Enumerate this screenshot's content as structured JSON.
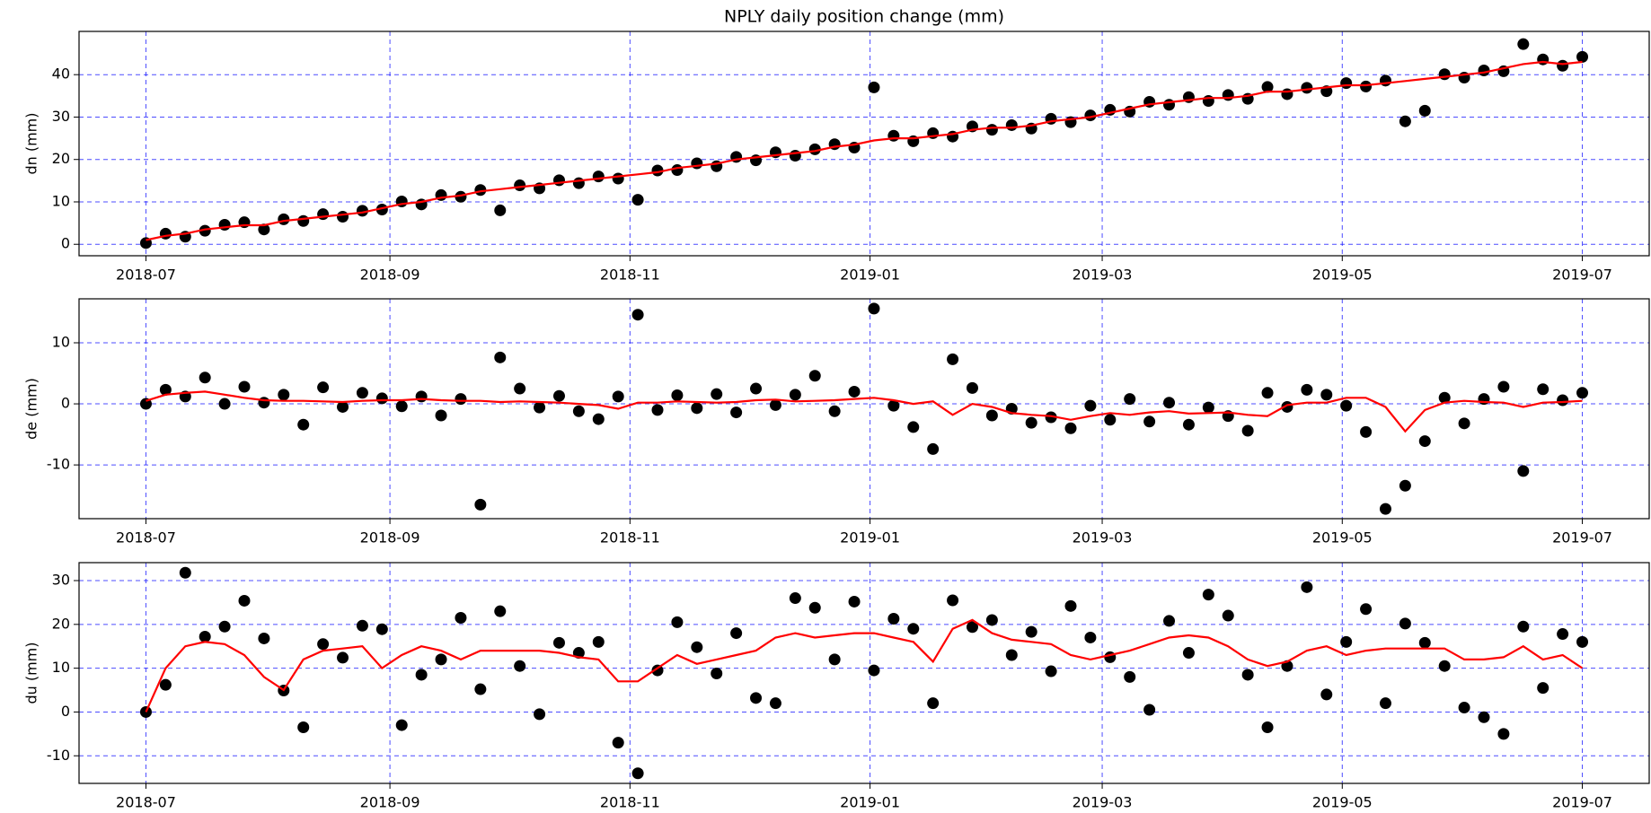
{
  "chart_data": [
    {
      "type": "scatter",
      "title": "NPLY daily position change (mm)",
      "y_label": "dn (mm)",
      "x": [
        0,
        5,
        10,
        15,
        20,
        25,
        30,
        35,
        40,
        45,
        50,
        55,
        60,
        65,
        70,
        75,
        80,
        85,
        90,
        95,
        100,
        105,
        110,
        115,
        120,
        125,
        130,
        135,
        140,
        145,
        150,
        155,
        160,
        165,
        170,
        175,
        180,
        185,
        190,
        195,
        200,
        205,
        210,
        215,
        220,
        225,
        230,
        235,
        240,
        245,
        250,
        255,
        260,
        265,
        270,
        275,
        280,
        285,
        290,
        295,
        300,
        305,
        310,
        315,
        320,
        325,
        330,
        335,
        340,
        345,
        350,
        355,
        360,
        365
      ],
      "series": [
        {
          "type": "scatter",
          "color": "#000000",
          "values": [
            0.3,
            2.5,
            1.8,
            3.2,
            4.6,
            5.2,
            3.5,
            5.9,
            5.5,
            7.1,
            6.5,
            7.9,
            8.2,
            10.1,
            9.4,
            11.6,
            11.2,
            12.8,
            8.0,
            13.9,
            13.2,
            15.1,
            14.4,
            16.0,
            15.5,
            10.5,
            17.4,
            17.5,
            19.1,
            18.4,
            20.6,
            19.8,
            21.7,
            20.9,
            22.4,
            23.6,
            22.8,
            37.0,
            25.6,
            24.3,
            26.2,
            25.4,
            27.8,
            27.0,
            28.1,
            27.3,
            29.6,
            28.8,
            30.4,
            31.7,
            31.3,
            33.6,
            32.9,
            34.7,
            33.8,
            35.2,
            34.3,
            37.1,
            35.4,
            36.9,
            36.1,
            38.0,
            37.2,
            38.6,
            29.0,
            31.5,
            40.1,
            39.3,
            41.0,
            40.8,
            47.2,
            43.6,
            42.1,
            44.2
          ]
        },
        {
          "type": "line",
          "color": "#ff0000",
          "values": [
            1.0,
            2.0,
            2.5,
            3.5,
            4.0,
            4.5,
            4.5,
            5.5,
            6.0,
            6.5,
            7.0,
            7.5,
            8.5,
            9.5,
            10.0,
            11.0,
            11.5,
            12.5,
            13.0,
            13.5,
            14.0,
            14.5,
            15.0,
            15.5,
            16.0,
            16.5,
            17.0,
            18.0,
            18.5,
            19.0,
            20.0,
            20.5,
            21.0,
            21.5,
            22.0,
            23.0,
            23.5,
            24.5,
            25.0,
            25.0,
            25.5,
            26.0,
            27.0,
            27.5,
            27.5,
            28.0,
            29.0,
            29.5,
            30.0,
            31.0,
            32.0,
            33.0,
            33.5,
            34.0,
            34.5,
            34.5,
            35.0,
            36.0,
            36.0,
            36.5,
            37.0,
            37.5,
            37.5,
            38.0,
            38.5,
            39.0,
            39.5,
            40.0,
            40.5,
            41.5,
            42.5,
            43.0,
            42.5,
            43.0
          ]
        }
      ],
      "xlim": [
        -17,
        382
      ],
      "xticks": [
        {
          "value": 0,
          "label": "2018-07"
        },
        {
          "value": 62,
          "label": "2018-09"
        },
        {
          "value": 123,
          "label": "2018-11"
        },
        {
          "value": 184,
          "label": "2019-01"
        },
        {
          "value": 243,
          "label": "2019-03"
        },
        {
          "value": 304,
          "label": "2019-05"
        },
        {
          "value": 365,
          "label": "2019-07"
        }
      ],
      "ylim": [
        -2.7,
        50.2
      ],
      "yticks": [
        0,
        10,
        20,
        30,
        40
      ],
      "grid": true,
      "grid_color": "#0000ff"
    },
    {
      "type": "scatter",
      "y_label": "de (mm)",
      "x": [
        0,
        5,
        10,
        15,
        20,
        25,
        30,
        35,
        40,
        45,
        50,
        55,
        60,
        65,
        70,
        75,
        80,
        85,
        90,
        95,
        100,
        105,
        110,
        115,
        120,
        125,
        130,
        135,
        140,
        145,
        150,
        155,
        160,
        165,
        170,
        175,
        180,
        185,
        190,
        195,
        200,
        205,
        210,
        215,
        220,
        225,
        230,
        235,
        240,
        245,
        250,
        255,
        260,
        265,
        270,
        275,
        280,
        285,
        290,
        295,
        300,
        305,
        310,
        315,
        320,
        325,
        330,
        335,
        340,
        345,
        350,
        355,
        360,
        365
      ],
      "series": [
        {
          "type": "scatter",
          "color": "#000000",
          "values": [
            0.0,
            2.3,
            1.2,
            4.3,
            0.0,
            2.8,
            0.2,
            1.5,
            -3.4,
            2.7,
            -0.5,
            1.8,
            0.9,
            -0.4,
            1.2,
            -1.9,
            0.8,
            -16.5,
            7.6,
            2.5,
            -0.6,
            1.3,
            -1.2,
            -2.5,
            1.2,
            14.6,
            -1.0,
            1.4,
            -0.7,
            1.6,
            -1.4,
            2.5,
            -0.2,
            1.5,
            4.6,
            -1.2,
            2.0,
            15.6,
            -0.3,
            -3.8,
            -7.4,
            7.3,
            2.6,
            -1.9,
            -0.8,
            -3.1,
            -2.2,
            -4.0,
            -0.3,
            -2.6,
            0.8,
            -2.9,
            0.2,
            -3.4,
            -0.6,
            -2.0,
            -4.4,
            1.8,
            -0.5,
            2.3,
            1.5,
            -0.3,
            -4.6,
            -17.2,
            -13.4,
            -6.1,
            1.0,
            -3.2,
            0.8,
            2.8,
            -11.0,
            2.4,
            0.6,
            1.8
          ]
        },
        {
          "type": "line",
          "color": "#ff0000",
          "values": [
            0.5,
            1.5,
            1.8,
            2.0,
            1.5,
            1.0,
            0.6,
            0.5,
            0.5,
            0.4,
            0.3,
            0.5,
            0.6,
            0.6,
            0.8,
            0.6,
            0.5,
            0.5,
            0.3,
            0.4,
            0.3,
            0.2,
            0.0,
            -0.2,
            -0.8,
            0.2,
            0.2,
            0.4,
            0.3,
            0.2,
            0.3,
            0.6,
            0.7,
            0.4,
            0.5,
            0.6,
            0.8,
            1.0,
            0.6,
            0.0,
            0.4,
            -1.8,
            0.0,
            -0.5,
            -1.5,
            -1.8,
            -2.0,
            -2.6,
            -2.0,
            -1.5,
            -1.8,
            -1.4,
            -1.2,
            -1.6,
            -1.5,
            -1.4,
            -1.8,
            -2.0,
            -0.2,
            0.2,
            0.2,
            1.0,
            1.0,
            -0.5,
            -4.5,
            -1.0,
            0.2,
            0.5,
            0.3,
            0.2,
            -0.5,
            0.2,
            0.3,
            0.5
          ]
        }
      ],
      "xlim": [
        -17,
        382
      ],
      "xticks": [
        {
          "value": 0,
          "label": "2018-07"
        },
        {
          "value": 62,
          "label": "2018-09"
        },
        {
          "value": 123,
          "label": "2018-11"
        },
        {
          "value": 184,
          "label": "2019-01"
        },
        {
          "value": 243,
          "label": "2019-03"
        },
        {
          "value": 304,
          "label": "2019-05"
        },
        {
          "value": 365,
          "label": "2019-07"
        }
      ],
      "ylim": [
        -18.8,
        17.2
      ],
      "yticks": [
        -10,
        0,
        10
      ],
      "grid": true,
      "grid_color": "#0000ff"
    },
    {
      "type": "scatter",
      "y_label": "du (mm)",
      "x": [
        0,
        5,
        10,
        15,
        20,
        25,
        30,
        35,
        40,
        45,
        50,
        55,
        60,
        65,
        70,
        75,
        80,
        85,
        90,
        95,
        100,
        105,
        110,
        115,
        120,
        125,
        130,
        135,
        140,
        145,
        150,
        155,
        160,
        165,
        170,
        175,
        180,
        185,
        190,
        195,
        200,
        205,
        210,
        215,
        220,
        225,
        230,
        235,
        240,
        245,
        250,
        255,
        260,
        265,
        270,
        275,
        280,
        285,
        290,
        295,
        300,
        305,
        310,
        315,
        320,
        325,
        330,
        335,
        340,
        345,
        350,
        355,
        360,
        365
      ],
      "series": [
        {
          "type": "scatter",
          "color": "#000000",
          "values": [
            0.0,
            6.2,
            31.8,
            17.2,
            19.5,
            25.4,
            16.8,
            4.9,
            -3.5,
            15.5,
            12.4,
            19.7,
            18.9,
            -3.0,
            8.5,
            12.0,
            21.5,
            5.2,
            23.0,
            10.5,
            -0.5,
            15.8,
            13.5,
            16.0,
            -7.0,
            -14.0,
            9.5,
            20.5,
            14.8,
            8.8,
            18.0,
            3.2,
            2.0,
            26.0,
            23.8,
            12.0,
            25.2,
            9.5,
            21.3,
            19.0,
            2.0,
            25.5,
            19.4,
            21.0,
            13.0,
            18.3,
            9.3,
            24.2,
            17.0,
            12.5,
            8.0,
            0.5,
            20.8,
            13.5,
            26.8,
            22.0,
            8.5,
            -3.5,
            10.5,
            28.5,
            4.0,
            16.0,
            23.5,
            2.0,
            20.2,
            15.8,
            10.5,
            1.0,
            -1.2,
            -5.0,
            19.5,
            5.5,
            17.8,
            16.0
          ]
        },
        {
          "type": "line",
          "color": "#ff0000",
          "values": [
            0,
            10,
            15,
            16,
            15.5,
            13,
            8,
            5,
            12,
            14,
            14.5,
            15,
            10,
            13,
            15,
            14,
            12,
            14,
            14,
            14,
            14,
            13.5,
            12.5,
            12,
            7,
            7,
            10,
            13,
            11,
            12,
            13,
            14,
            17,
            18,
            17,
            17.5,
            18,
            18,
            17,
            16,
            11.5,
            19,
            21,
            18,
            16.5,
            16,
            15.5,
            13,
            12,
            13,
            14,
            15.5,
            17,
            17.5,
            17,
            15,
            12,
            10.5,
            11.5,
            14,
            15,
            13,
            14,
            14.5,
            14.5,
            14.5,
            14.5,
            12,
            12,
            12.5,
            15,
            12,
            13,
            10
          ]
        }
      ],
      "xlim": [
        -17,
        382
      ],
      "xticks": [
        {
          "value": 0,
          "label": "2018-07"
        },
        {
          "value": 62,
          "label": "2018-09"
        },
        {
          "value": 123,
          "label": "2018-11"
        },
        {
          "value": 184,
          "label": "2019-01"
        },
        {
          "value": 243,
          "label": "2019-03"
        },
        {
          "value": 304,
          "label": "2019-05"
        },
        {
          "value": 365,
          "label": "2019-07"
        }
      ],
      "ylim": [
        -16.3,
        34.1
      ],
      "yticks": [
        -10,
        0,
        10,
        20,
        30
      ],
      "grid": true,
      "grid_color": "#0000ff"
    }
  ]
}
